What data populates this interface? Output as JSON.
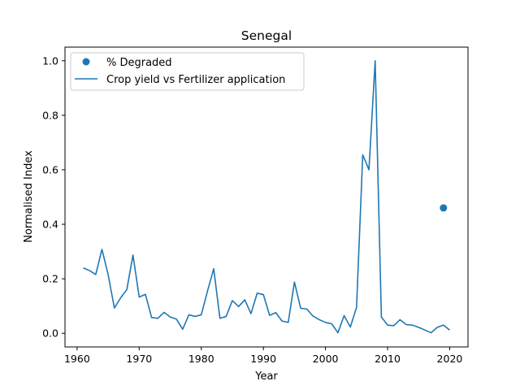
{
  "chart_data": {
    "type": "line",
    "title": "Senegal",
    "xlabel": "Year",
    "ylabel": "Normalised Index",
    "xlim": [
      1958.05,
      2022.95
    ],
    "ylim": [
      -0.05,
      1.05
    ],
    "xticks": [
      1960,
      1970,
      1980,
      1990,
      2000,
      2010,
      2020
    ],
    "yticks": [
      0.0,
      0.2,
      0.4,
      0.6,
      0.8,
      1.0
    ],
    "ytick_labels": [
      "0.0",
      "0.2",
      "0.4",
      "0.6",
      "0.8",
      "1.0"
    ],
    "grid": false,
    "legend_position": "top-left",
    "series": [
      {
        "name": "Crop yield vs Fertilizer application",
        "kind": "line",
        "color": "#1f77b4",
        "x": [
          1961,
          1962,
          1963,
          1964,
          1965,
          1966,
          1967,
          1968,
          1969,
          1970,
          1971,
          1972,
          1973,
          1974,
          1975,
          1976,
          1977,
          1978,
          1979,
          1980,
          1981,
          1982,
          1983,
          1984,
          1985,
          1986,
          1987,
          1988,
          1989,
          1990,
          1991,
          1992,
          1993,
          1994,
          1995,
          1996,
          1997,
          1998,
          1999,
          2000,
          2001,
          2002,
          2003,
          2004,
          2005,
          2006,
          2007,
          2008,
          2009,
          2010,
          2011,
          2012,
          2013,
          2014,
          2015,
          2016,
          2017,
          2018,
          2019,
          2020
        ],
        "y": [
          0.24,
          0.23,
          0.216,
          0.308,
          0.215,
          0.093,
          0.13,
          0.16,
          0.287,
          0.133,
          0.143,
          0.058,
          0.055,
          0.077,
          0.06,
          0.052,
          0.015,
          0.068,
          0.062,
          0.068,
          0.155,
          0.237,
          0.055,
          0.062,
          0.12,
          0.098,
          0.123,
          0.072,
          0.147,
          0.142,
          0.066,
          0.076,
          0.045,
          0.04,
          0.188,
          0.092,
          0.089,
          0.063,
          0.05,
          0.04,
          0.035,
          0.002,
          0.065,
          0.023,
          0.095,
          0.655,
          0.6,
          1.0,
          0.06,
          0.03,
          0.028,
          0.05,
          0.032,
          0.03,
          0.022,
          0.012,
          0.002,
          0.022,
          0.03,
          0.012
        ]
      },
      {
        "name": "% Degraded",
        "kind": "scatter",
        "color": "#1f77b4",
        "x": [
          2019
        ],
        "y": [
          0.46
        ]
      }
    ]
  }
}
